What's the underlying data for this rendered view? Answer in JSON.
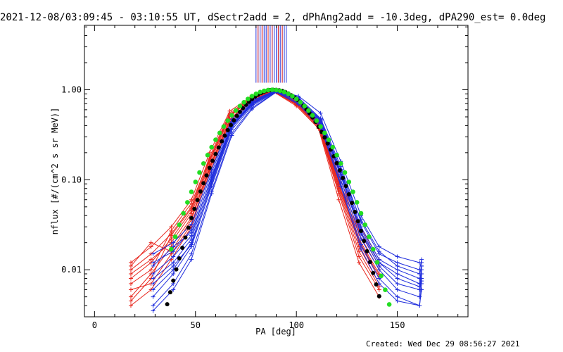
{
  "title": "2021-12-08/03:09:45 - 03:10:55 UT, dSectr2add = 2, dPhAng2add = -10.3deg, dPA290_est=  0.0deg",
  "footer": "Created: Wed Dec 29 08:56:27 2021",
  "chart_data": {
    "type": "line",
    "xlabel": "PA [deg]",
    "ylabel": "nflux [#/(cm^2 s sr MeV)]",
    "xlim": [
      -5,
      185
    ],
    "ylim": [
      0.003,
      5.2
    ],
    "yscale": "log",
    "xticks": [
      0,
      50,
      100,
      150
    ],
    "yticks": [
      0.01,
      0.1,
      1.0
    ],
    "ytick_labels": [
      "0.01",
      "0.10",
      "1.00"
    ],
    "grid": false,
    "colors": {
      "red": "#e8271e",
      "blue": "#1f2ddd",
      "green": "#22dd22",
      "black": "#000000"
    },
    "red_x": [
      18,
      28,
      38,
      48,
      57,
      67,
      77,
      89,
      100,
      111,
      121,
      131,
      141
    ],
    "blue_x": [
      29,
      39,
      48,
      58,
      68,
      78,
      90,
      101,
      112,
      122,
      132,
      141,
      150,
      161,
      162
    ],
    "red_series": [
      [
        0.008,
        0.012,
        0.022,
        0.045,
        0.16,
        0.52,
        0.78,
        0.97,
        0.72,
        0.42,
        0.09,
        0.022,
        0.009
      ],
      [
        0.005,
        0.009,
        0.018,
        0.038,
        0.14,
        0.47,
        0.75,
        0.96,
        0.7,
        0.4,
        0.08,
        0.018,
        0.007
      ],
      [
        0.01,
        0.015,
        0.025,
        0.05,
        0.18,
        0.55,
        0.8,
        0.98,
        0.74,
        0.44,
        0.1,
        0.028,
        0.011
      ],
      [
        0.006,
        0.007,
        0.015,
        0.032,
        0.13,
        0.44,
        0.72,
        0.95,
        0.68,
        0.38,
        0.07,
        0.014,
        0.006
      ],
      [
        0.012,
        0.018,
        0.03,
        0.06,
        0.2,
        0.58,
        0.82,
        0.99,
        0.76,
        0.46,
        0.11,
        0.032,
        0.013
      ],
      [
        0.004,
        0.006,
        0.013,
        0.03,
        0.12,
        0.42,
        0.7,
        0.94,
        0.66,
        0.37,
        0.06,
        0.012,
        0.005
      ],
      [
        0.009,
        0.013,
        0.02,
        0.042,
        0.15,
        0.5,
        0.77,
        0.97,
        0.71,
        0.41,
        0.085,
        0.02,
        0.008
      ],
      [
        0.007,
        0.01,
        0.027,
        0.055,
        0.17,
        0.53,
        0.79,
        0.98,
        0.73,
        0.43,
        0.095,
        0.025,
        0.01
      ],
      [
        0.011,
        0.02,
        0.016,
        0.036,
        0.135,
        0.46,
        0.74,
        0.96,
        0.69,
        0.39,
        0.075,
        0.016,
        0.0065
      ],
      [
        0.0045,
        0.008,
        0.024,
        0.048,
        0.165,
        0.51,
        0.78,
        0.97,
        0.72,
        0.42,
        0.088,
        0.021,
        0.0085
      ]
    ],
    "blue_series": [
      [
        0.008,
        0.012,
        0.022,
        0.1,
        0.4,
        0.7,
        0.98,
        0.78,
        0.45,
        0.12,
        0.028,
        0.012,
        0.009,
        0.007,
        0.011
      ],
      [
        0.005,
        0.009,
        0.018,
        0.085,
        0.36,
        0.66,
        0.96,
        0.74,
        0.42,
        0.1,
        0.022,
        0.01,
        0.006,
        0.005,
        0.009
      ],
      [
        0.012,
        0.016,
        0.028,
        0.12,
        0.44,
        0.74,
        0.99,
        0.82,
        0.48,
        0.14,
        0.034,
        0.015,
        0.012,
        0.01,
        0.013
      ],
      [
        0.004,
        0.007,
        0.015,
        0.075,
        0.33,
        0.63,
        0.95,
        0.71,
        0.4,
        0.09,
        0.019,
        0.008,
        0.005,
        0.004,
        0.007
      ],
      [
        0.015,
        0.02,
        0.032,
        0.13,
        0.47,
        0.76,
        0.99,
        0.85,
        0.55,
        0.16,
        0.04,
        0.018,
        0.014,
        0.012,
        0.012
      ],
      [
        0.006,
        0.01,
        0.02,
        0.09,
        0.38,
        0.68,
        0.97,
        0.76,
        0.44,
        0.11,
        0.025,
        0.011,
        0.007,
        0.006,
        0.01
      ],
      [
        0.009,
        0.014,
        0.024,
        0.11,
        0.42,
        0.72,
        0.98,
        0.8,
        0.46,
        0.13,
        0.03,
        0.013,
        0.01,
        0.008,
        0.008
      ],
      [
        0.0035,
        0.006,
        0.013,
        0.07,
        0.31,
        0.61,
        0.94,
        0.69,
        0.38,
        0.085,
        0.017,
        0.007,
        0.0045,
        0.004,
        0.006
      ],
      [
        0.011,
        0.018,
        0.026,
        0.105,
        0.41,
        0.71,
        0.98,
        0.79,
        0.47,
        0.12,
        0.036,
        0.016,
        0.011,
        0.009,
        0.011
      ],
      [
        0.007,
        0.011,
        0.019,
        0.095,
        0.39,
        0.69,
        0.97,
        0.77,
        0.43,
        0.115,
        0.026,
        0.012,
        0.008,
        0.0065,
        0.0075
      ]
    ],
    "blue_spike_x": [
      80,
      95
    ],
    "green_fit": {
      "peak": 1.0,
      "center": 88,
      "sigma": 17.5,
      "x_from": 38,
      "x_to": 148,
      "step": 2
    },
    "black_fit": {
      "peak": 1.0,
      "center": 89,
      "sigma": 16.0,
      "x_from": 36,
      "x_to": 142,
      "step": 1.5
    }
  }
}
